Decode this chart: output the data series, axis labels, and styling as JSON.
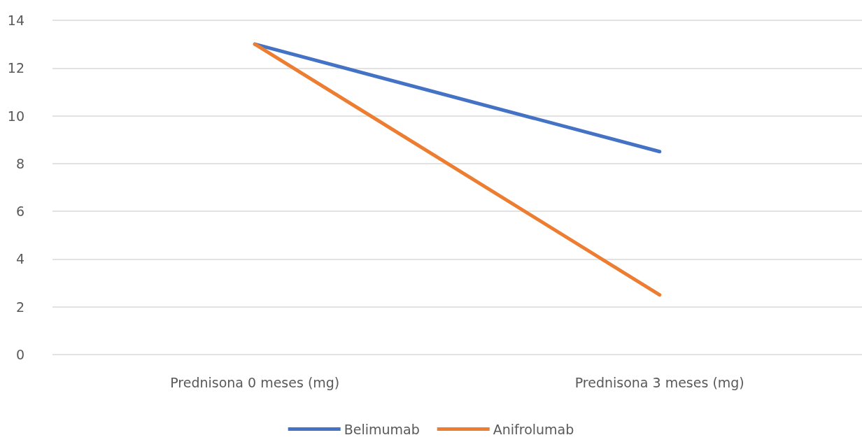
{
  "chart_data": {
    "type": "line",
    "categories": [
      "Prednisona 0 meses (mg)",
      "Prednisona 3 meses (mg)"
    ],
    "series": [
      {
        "name": "Belimumab",
        "color": "#4472c4",
        "values": [
          13,
          8.5
        ]
      },
      {
        "name": "Anifrolumab",
        "color": "#ed7d31",
        "values": [
          13,
          2.5
        ]
      }
    ],
    "ylim": [
      0,
      14
    ],
    "yticks": [
      0,
      2,
      4,
      6,
      8,
      10,
      12,
      14
    ],
    "grid": "y",
    "legend": "bottom",
    "marker": "none",
    "line_style": "solid"
  }
}
